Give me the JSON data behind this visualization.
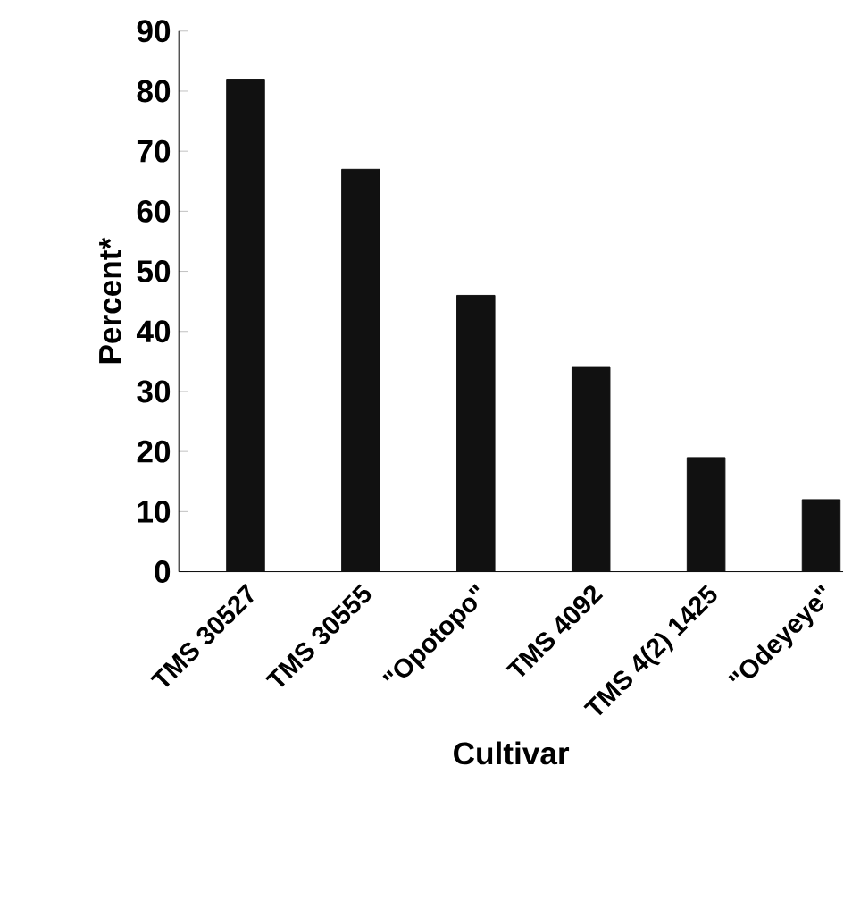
{
  "chart_data": {
    "type": "bar",
    "xlabel": "Cultivar",
    "ylabel": "Percent*",
    "categories": [
      "TMS 30527",
      "TMS 30555",
      "\"Opotopo\"",
      "TMS 4092",
      "TMS 4(2) 1425",
      "\"Odeyeye\""
    ],
    "values": [
      82,
      67,
      46,
      34,
      19,
      12
    ],
    "color": "#111111",
    "ylim": [
      0,
      90
    ],
    "yticks": [
      0,
      10,
      20,
      30,
      40,
      50,
      60,
      70,
      80,
      90
    ],
    "grid": false
  }
}
